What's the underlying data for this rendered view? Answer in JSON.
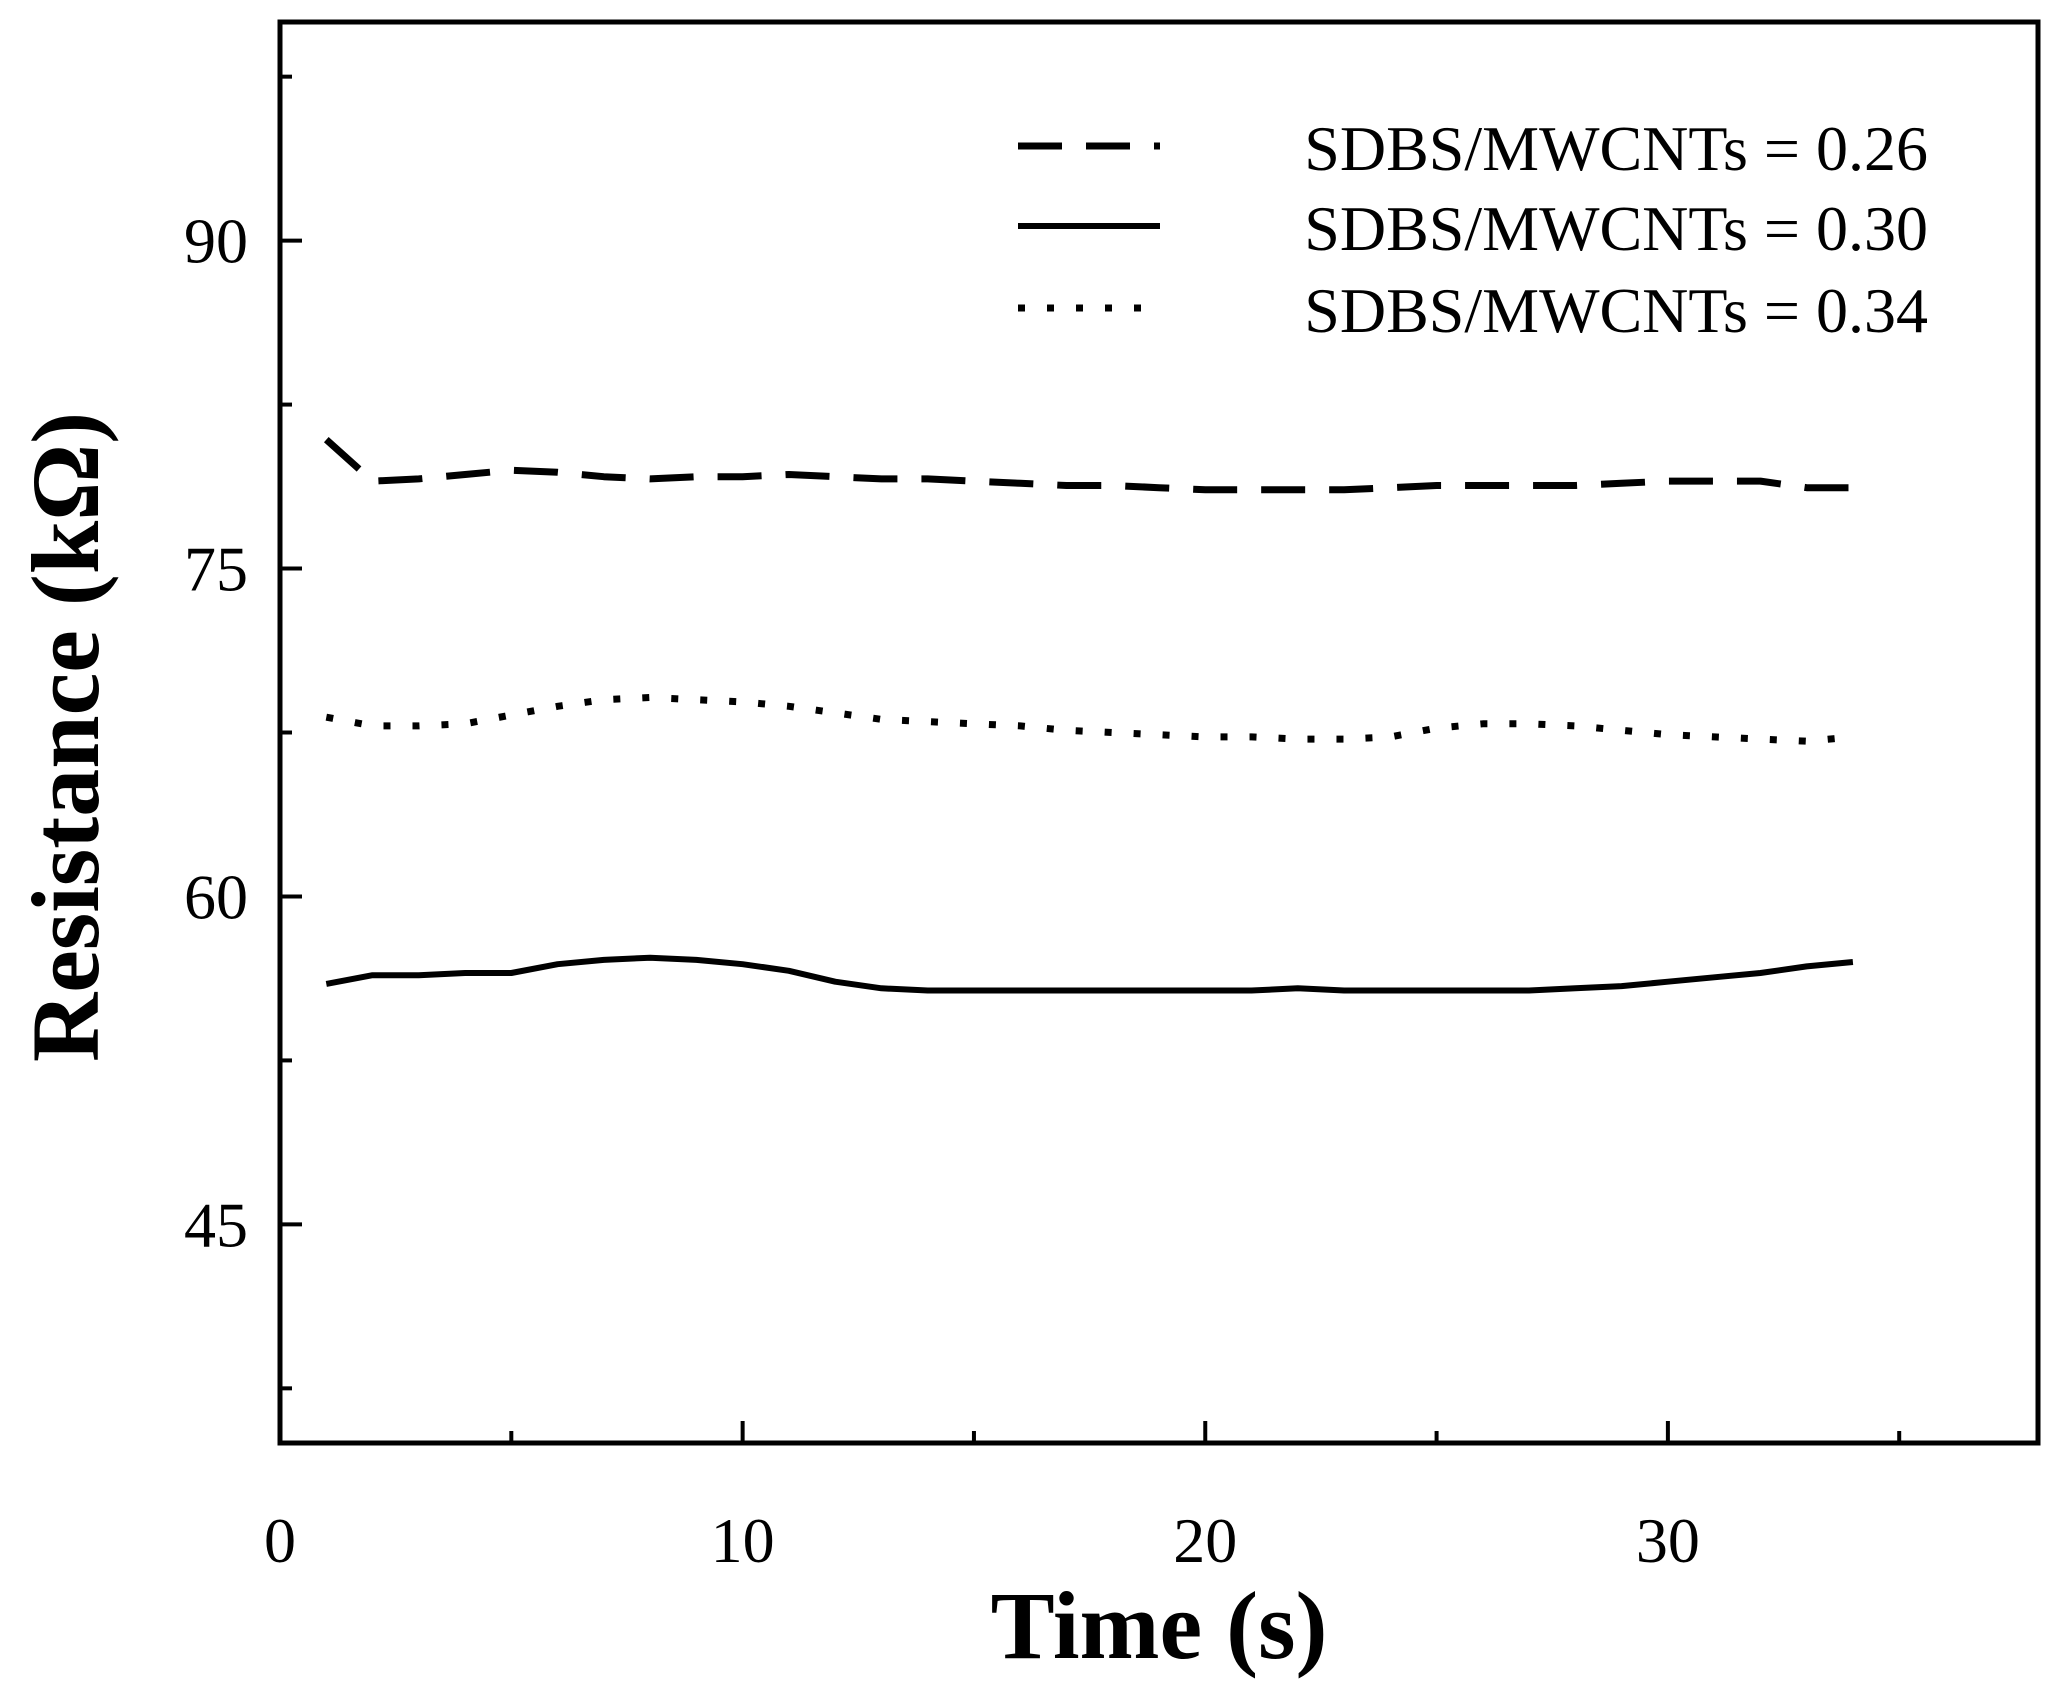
{
  "chart_data": {
    "type": "line",
    "title": "",
    "xlabel": "Time (s)",
    "ylabel": "Resistance (kΩ)",
    "xlim": [
      0,
      38
    ],
    "ylim": [
      35,
      100
    ],
    "x_ticks": [
      0,
      10,
      20,
      30
    ],
    "x_minor_ticks": [
      5,
      15,
      25,
      35
    ],
    "y_ticks": [
      45,
      60,
      75,
      90
    ],
    "y_minor_ticks": [
      37.5,
      52.5,
      67.5,
      82.5,
      97.5
    ],
    "grid": false,
    "legend_position": "top-right",
    "x": [
      1,
      2,
      3,
      4,
      5,
      6,
      7,
      8,
      9,
      10,
      11,
      12,
      13,
      14,
      15,
      16,
      17,
      18,
      19,
      20,
      21,
      22,
      23,
      24,
      25,
      26,
      27,
      28,
      29,
      30,
      31,
      32,
      33,
      34
    ],
    "series": [
      {
        "name": "SDBS/MWCNTs = 0.26",
        "style": "dashed",
        "values": [
          80.9,
          79.0,
          79.1,
          79.3,
          79.5,
          79.4,
          79.2,
          79.1,
          79.2,
          79.2,
          79.3,
          79.2,
          79.1,
          79.1,
          79.0,
          78.9,
          78.8,
          78.8,
          78.7,
          78.6,
          78.6,
          78.6,
          78.6,
          78.7,
          78.8,
          78.8,
          78.8,
          78.8,
          78.9,
          79.0,
          79.0,
          79.0,
          78.7,
          78.7
        ]
      },
      {
        "name": "SDBS/MWCNTs = 0.30",
        "style": "solid",
        "values": [
          56.0,
          56.4,
          56.4,
          56.5,
          56.5,
          56.9,
          57.1,
          57.2,
          57.1,
          56.9,
          56.6,
          56.1,
          55.8,
          55.7,
          55.7,
          55.7,
          55.7,
          55.7,
          55.7,
          55.7,
          55.7,
          55.8,
          55.7,
          55.7,
          55.7,
          55.7,
          55.7,
          55.8,
          55.9,
          56.1,
          56.3,
          56.5,
          56.8,
          57.0
        ]
      },
      {
        "name": "SDBS/MWCNTs = 0.34",
        "style": "dotted",
        "values": [
          68.2,
          67.8,
          67.8,
          67.9,
          68.3,
          68.7,
          69.0,
          69.1,
          69.0,
          68.9,
          68.7,
          68.4,
          68.1,
          68.0,
          67.9,
          67.8,
          67.6,
          67.5,
          67.4,
          67.3,
          67.3,
          67.2,
          67.2,
          67.3,
          67.7,
          67.9,
          67.9,
          67.8,
          67.6,
          67.4,
          67.3,
          67.2,
          67.1,
          67.3
        ]
      }
    ]
  }
}
